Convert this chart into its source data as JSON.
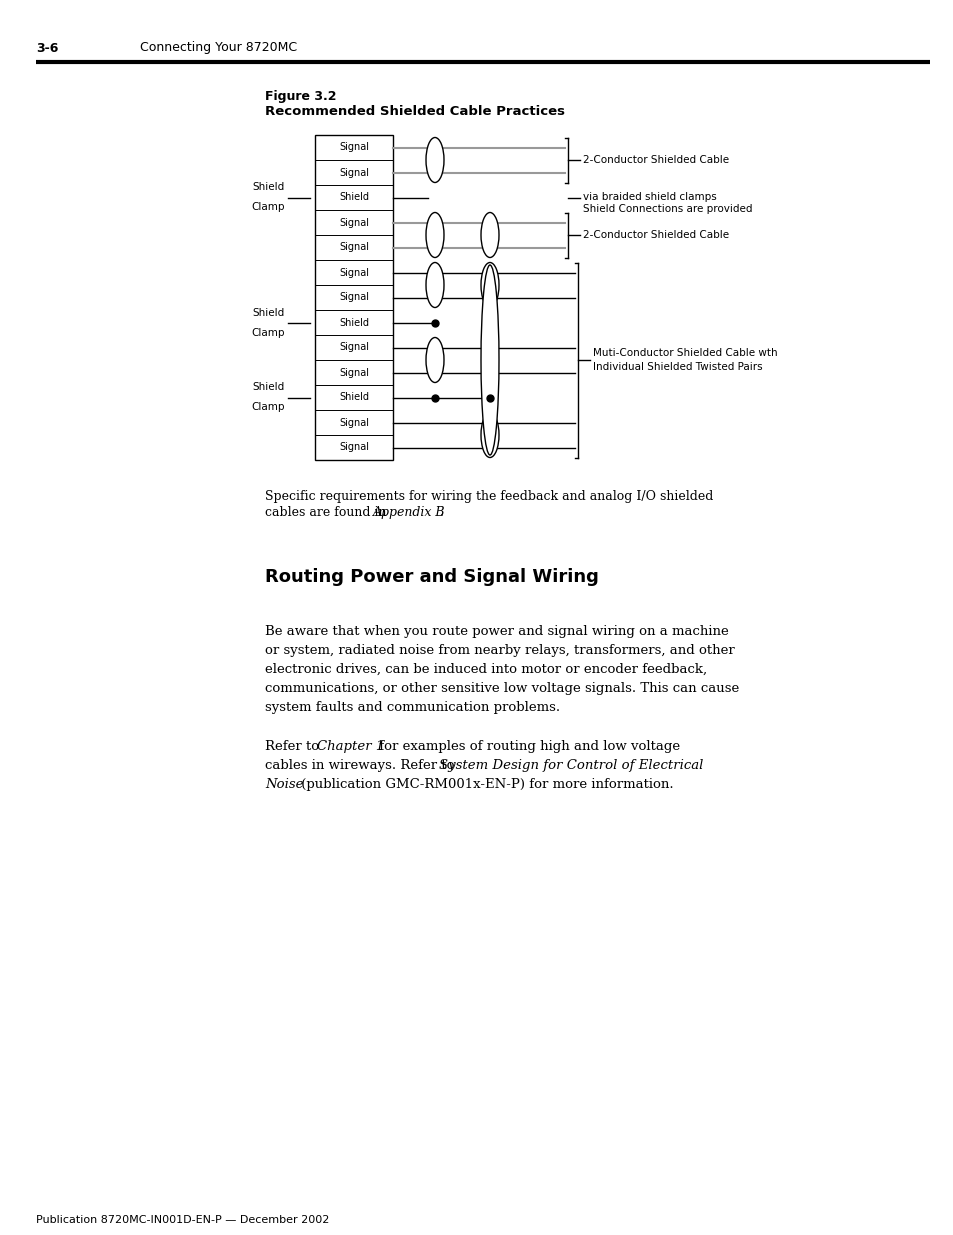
{
  "page_header_left": "3-6",
  "page_header_right": "Connecting Your 8720MC",
  "figure_title_line1": "Figure 3.2",
  "figure_title_line2": "Recommended Shielded Cable Practices",
  "section_heading": "Routing Power and Signal Wiring",
  "footer": "Publication 8720MC-IN001D-EN-P — December 2002",
  "bg_color": "#ffffff",
  "row_labels": [
    "Signal",
    "Signal",
    "Shield",
    "Signal",
    "Signal",
    "Signal",
    "Signal",
    "Shield",
    "Signal",
    "Signal",
    "Shield",
    "Signal",
    "Signal"
  ],
  "shield_clamp_rows": [
    2,
    7,
    10
  ],
  "connector_label_right1": "2-Conductor Shielded Cable",
  "connector_label_right2_l1": "Shield Connections are provided",
  "connector_label_right2_l2": "via braided shield clamps",
  "connector_label_right3": "2-Conductor Shielded Cable",
  "connector_label_right4_l1": "Muti-Conductor Shielded Cable wth",
  "connector_label_right4_l2": "Individual Shielded Twisted Pairs",
  "caption_l1": "Specific requirements for wiring the feedback and analog I/O shielded",
  "caption_l2_pre": "cables are found in ",
  "caption_italic": "Appendix B",
  "caption_end": ".",
  "para1_l1": "Be aware that when you route power and signal wiring on a machine",
  "para1_l2": "or system, radiated noise from nearby relays, transformers, and other",
  "para1_l3": "electronic drives, can be induced into motor or encoder feedback,",
  "para1_l4": "communications, or other sensitive low voltage signals. This can cause",
  "para1_l5": "system faults and communication problems.",
  "para2_l1_pre": "Refer to ",
  "para2_l1_it": "Chapter 1",
  "para2_l1_post": " for examples of routing high and low voltage",
  "para2_l2_pre": "cables in wireways. Refer to ",
  "para2_l2_it": "System Design for Control of Electrical",
  "para2_l3_it": "Noise",
  "para2_l3_post": " (publication GMC-RM001x-EN-P) for more information."
}
